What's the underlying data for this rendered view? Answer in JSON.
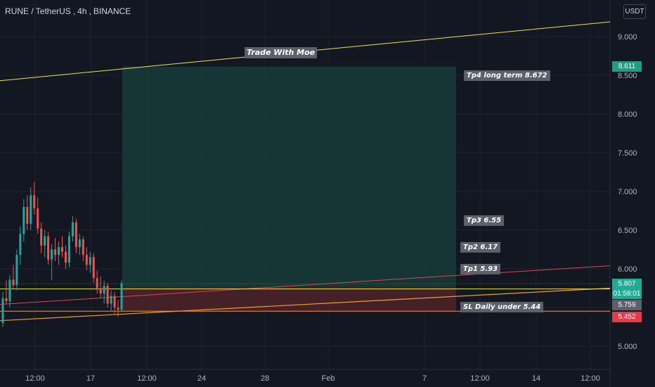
{
  "header": {
    "symbol": "RUNE / TetherUS",
    "interval": "4h",
    "exchange": "BINANCE",
    "currency_button": "USDT"
  },
  "annotations": {
    "title": "Trade With Moe",
    "tp4": "Tp4 long term 8.672",
    "tp3": "Tp3 6.55",
    "tp2": "Tp2 6.17",
    "tp1": "Tp1 5.93",
    "sl": "SL Daily under 5.44"
  },
  "price_tags": {
    "target": "8.611",
    "last_price": "5.807",
    "countdown": "01:58:01",
    "entry": "5.759",
    "stop": "5.452"
  },
  "colors": {
    "background": "#131722",
    "up": "#26a69a",
    "down": "#ef5350",
    "profit_zone": "#173a38",
    "loss_zone": "#4a2227",
    "trendline": "#f5e14a",
    "orange_line": "#f59b23",
    "red_line": "#e0464d"
  },
  "chart_data": {
    "type": "candlestick",
    "y_axis": {
      "ticks": [
        "5.000",
        "5.500",
        "6.000",
        "6.500",
        "7.000",
        "7.500",
        "8.000",
        "8.500",
        "9.000"
      ],
      "ylim": [
        4.55,
        9.45
      ]
    },
    "x_axis": {
      "ticks": [
        "12:00",
        "17",
        "12:00",
        "24",
        "28",
        "Feb",
        "7",
        "12:00",
        "14",
        "12:00"
      ]
    },
    "candles": [
      [
        5.3,
        5.7,
        5.25,
        5.62
      ],
      [
        5.62,
        5.85,
        5.55,
        5.58
      ],
      [
        5.58,
        5.92,
        5.5,
        5.86
      ],
      [
        5.86,
        6.05,
        5.75,
        5.79
      ],
      [
        5.79,
        6.25,
        5.72,
        6.18
      ],
      [
        6.18,
        6.55,
        6.05,
        6.45
      ],
      [
        6.45,
        6.9,
        6.35,
        6.8
      ],
      [
        6.8,
        6.95,
        6.5,
        6.58
      ],
      [
        6.58,
        7.05,
        6.5,
        6.95
      ],
      [
        6.95,
        7.12,
        6.7,
        6.78
      ],
      [
        6.78,
        6.92,
        6.45,
        6.52
      ],
      [
        6.52,
        6.6,
        6.2,
        6.3
      ],
      [
        6.3,
        6.5,
        6.15,
        6.42
      ],
      [
        6.42,
        6.48,
        6.05,
        6.12
      ],
      [
        6.12,
        6.32,
        5.85,
        6.25
      ],
      [
        6.25,
        6.4,
        6.1,
        6.18
      ],
      [
        6.18,
        6.35,
        6.05,
        6.28
      ],
      [
        6.28,
        6.42,
        6.15,
        6.22
      ],
      [
        6.22,
        6.3,
        6.0,
        6.08
      ],
      [
        6.08,
        6.48,
        6.02,
        6.42
      ],
      [
        6.42,
        6.68,
        6.35,
        6.6
      ],
      [
        6.6,
        6.65,
        6.2,
        6.28
      ],
      [
        6.28,
        6.45,
        6.18,
        6.38
      ],
      [
        6.38,
        6.42,
        6.1,
        6.18
      ],
      [
        6.18,
        6.28,
        5.98,
        6.05
      ],
      [
        6.05,
        6.22,
        5.95,
        6.15
      ],
      [
        6.15,
        6.2,
        5.82,
        5.88
      ],
      [
        5.88,
        5.98,
        5.68,
        5.75
      ],
      [
        5.75,
        5.9,
        5.62,
        5.68
      ],
      [
        5.68,
        5.85,
        5.55,
        5.78
      ],
      [
        5.78,
        5.82,
        5.5,
        5.55
      ],
      [
        5.55,
        5.72,
        5.45,
        5.65
      ],
      [
        5.65,
        5.7,
        5.42,
        5.5
      ],
      [
        5.5,
        5.6,
        5.38,
        5.47
      ],
      [
        5.47,
        5.85,
        5.44,
        5.81
      ]
    ],
    "levels": {
      "tp4": 8.672,
      "tp3": 6.55,
      "tp2": 6.17,
      "tp1": 5.93,
      "sl": 5.44,
      "target": 8.611,
      "entry": 5.759,
      "stop": 5.452,
      "last": 5.807
    }
  }
}
